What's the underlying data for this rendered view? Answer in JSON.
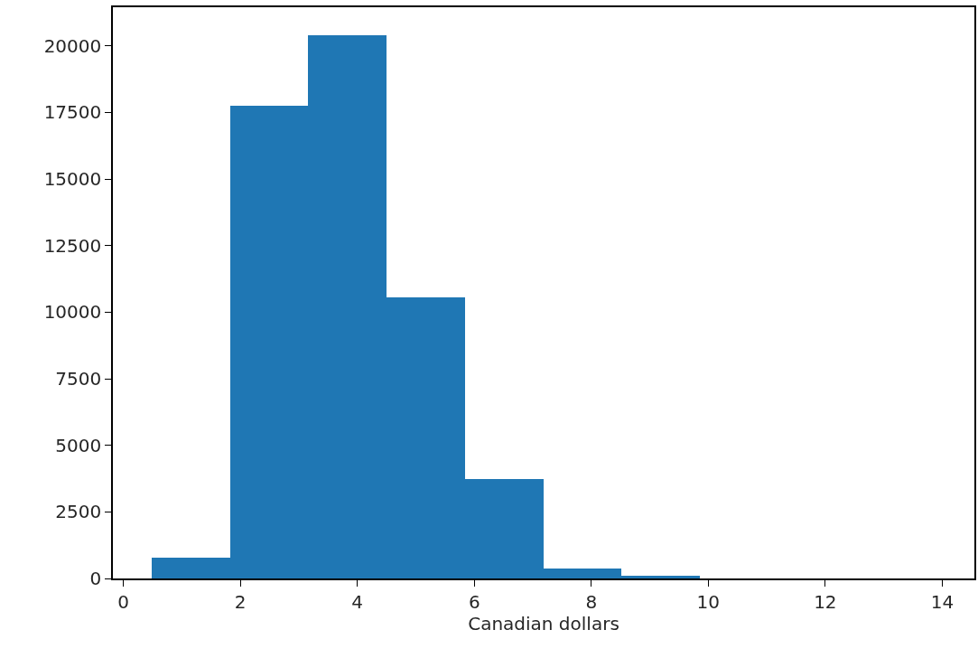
{
  "chart_data": {
    "type": "histogram",
    "xlabel": "Canadian dollars",
    "color": "#1f77b4",
    "bins": [
      0.48,
      1.82,
      3.16,
      4.5,
      5.84,
      7.18,
      8.52,
      9.86,
      11.2,
      12.54,
      13.88
    ],
    "values": [
      780,
      17750,
      20400,
      10550,
      3750,
      390,
      100,
      0,
      0,
      0
    ],
    "xlim": [
      -0.18,
      14.55
    ],
    "xticks": [
      0,
      2,
      4,
      6,
      8,
      10,
      12,
      14
    ],
    "ylim": [
      0,
      21450
    ],
    "yticks": [
      0,
      2500,
      5000,
      7500,
      10000,
      12500,
      15000,
      17500,
      20000
    ]
  }
}
